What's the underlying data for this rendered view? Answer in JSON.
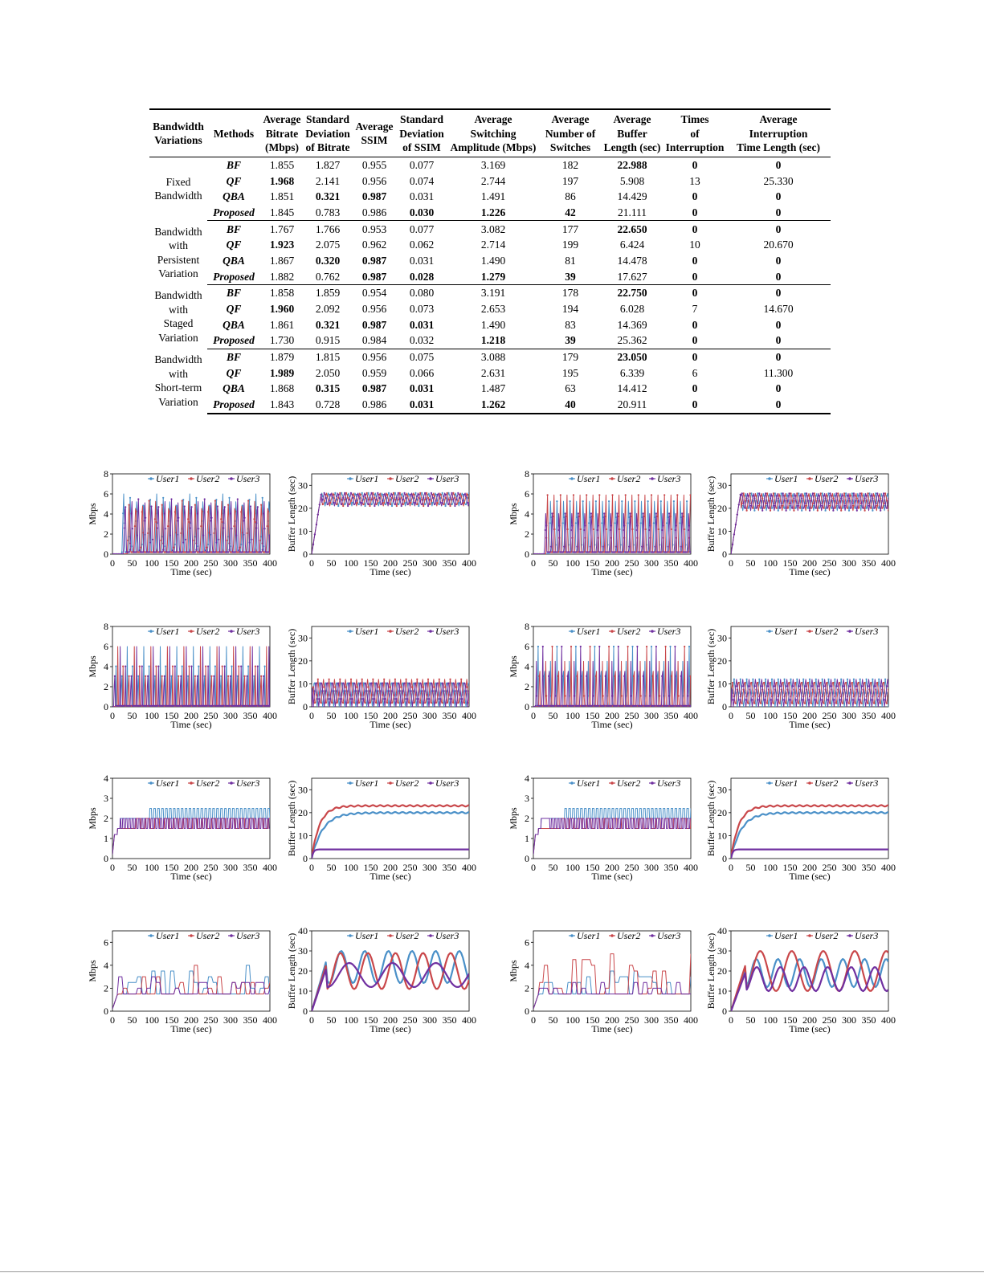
{
  "table": {
    "headers": [
      "Bandwidth\nVariations",
      "Methods",
      "Average\nBitrate\n(Mbps)",
      "Standard\nDeviation\nof Bitrate",
      "Average\nSSIM",
      "Standard\nDeviation\nof SSIM",
      "Average\nSwitching\nAmplitude (Mbps)",
      "Average\nNumber of\nSwitches",
      "Average\nBuffer\nLength (sec)",
      "Times\nof\nInterruption",
      "Average\nInterruption\nTime Length (sec)"
    ],
    "groups": [
      {
        "label": "Fixed\nBandwidth",
        "rows": [
          {
            "method": "BF",
            "cells": [
              "1.855",
              "1.827",
              "0.955",
              "0.077",
              "3.169",
              "182",
              "22.988",
              "0",
              "0"
            ],
            "bold": [
              6,
              7,
              8
            ]
          },
          {
            "method": "QF",
            "cells": [
              "1.968",
              "2.141",
              "0.956",
              "0.074",
              "2.744",
              "197",
              "5.908",
              "13",
              "25.330"
            ],
            "bold": [
              0
            ]
          },
          {
            "method": "QBA",
            "cells": [
              "1.851",
              "0.321",
              "0.987",
              "0.031",
              "1.491",
              "86",
              "14.429",
              "0",
              "0"
            ],
            "bold": [
              1,
              2,
              7,
              8
            ]
          },
          {
            "method": "Proposed",
            "cells": [
              "1.845",
              "0.783",
              "0.986",
              "0.030",
              "1.226",
              "42",
              "21.111",
              "0",
              "0"
            ],
            "bold": [
              3,
              4,
              5,
              7,
              8
            ]
          }
        ]
      },
      {
        "label": "Bandwidth\nwith\nPersistent\nVariation",
        "rows": [
          {
            "method": "BF",
            "cells": [
              "1.767",
              "1.766",
              "0.953",
              "0.077",
              "3.082",
              "177",
              "22.650",
              "0",
              "0"
            ],
            "bold": [
              6,
              7,
              8
            ]
          },
          {
            "method": "QF",
            "cells": [
              "1.923",
              "2.075",
              "0.962",
              "0.062",
              "2.714",
              "199",
              "6.424",
              "10",
              "20.670"
            ],
            "bold": [
              0
            ]
          },
          {
            "method": "QBA",
            "cells": [
              "1.867",
              "0.320",
              "0.987",
              "0.031",
              "1.490",
              "81",
              "14.478",
              "0",
              "0"
            ],
            "bold": [
              1,
              2,
              7,
              8
            ]
          },
          {
            "method": "Proposed",
            "cells": [
              "1.882",
              "0.762",
              "0.987",
              "0.028",
              "1.279",
              "39",
              "17.627",
              "0",
              "0"
            ],
            "bold": [
              2,
              3,
              4,
              5,
              7,
              8
            ]
          }
        ]
      },
      {
        "label": "Bandwidth\nwith\nStaged\nVariation",
        "rows": [
          {
            "method": "BF",
            "cells": [
              "1.858",
              "1.859",
              "0.954",
              "0.080",
              "3.191",
              "178",
              "22.750",
              "0",
              "0"
            ],
            "bold": [
              6,
              7,
              8
            ]
          },
          {
            "method": "QF",
            "cells": [
              "1.960",
              "2.092",
              "0.956",
              "0.073",
              "2.653",
              "194",
              "6.028",
              "7",
              "14.670"
            ],
            "bold": [
              0
            ]
          },
          {
            "method": "QBA",
            "cells": [
              "1.861",
              "0.321",
              "0.987",
              "0.031",
              "1.490",
              "83",
              "14.369",
              "0",
              "0"
            ],
            "bold": [
              1,
              2,
              3,
              7,
              8
            ]
          },
          {
            "method": "Proposed",
            "cells": [
              "1.730",
              "0.915",
              "0.984",
              "0.032",
              "1.218",
              "39",
              "25.362",
              "0",
              "0"
            ],
            "bold": [
              4,
              5,
              7,
              8
            ]
          }
        ]
      },
      {
        "label": "Bandwidth\nwith\nShort-term\nVariation",
        "rows": [
          {
            "method": "BF",
            "cells": [
              "1.879",
              "1.815",
              "0.956",
              "0.075",
              "3.088",
              "179",
              "23.050",
              "0",
              "0"
            ],
            "bold": [
              6,
              7,
              8
            ]
          },
          {
            "method": "QF",
            "cells": [
              "1.989",
              "2.050",
              "0.959",
              "0.066",
              "2.631",
              "195",
              "6.339",
              "6",
              "11.300"
            ],
            "bold": [
              0
            ]
          },
          {
            "method": "QBA",
            "cells": [
              "1.868",
              "0.315",
              "0.987",
              "0.031",
              "1.487",
              "63",
              "14.412",
              "0",
              "0"
            ],
            "bold": [
              1,
              2,
              3,
              7,
              8
            ]
          },
          {
            "method": "Proposed",
            "cells": [
              "1.843",
              "0.728",
              "0.986",
              "0.031",
              "1.262",
              "40",
              "20.911",
              "0",
              "0"
            ],
            "bold": [
              3,
              4,
              5,
              7,
              8
            ]
          }
        ]
      }
    ]
  },
  "colors": {
    "User1": "#4a90c8",
    "User2": "#c9474a",
    "User3": "#7030a0"
  },
  "chart_data": [
    {
      "type": "line",
      "xlabel": "Time (sec)",
      "ylabel": "Mbps",
      "xlim": [
        0,
        400
      ],
      "ylim": [
        0,
        8
      ],
      "yticks": [
        0,
        2,
        4,
        6,
        8
      ],
      "xticks": [
        0,
        50,
        100,
        150,
        200,
        250,
        300,
        350,
        400
      ],
      "legend": [
        "User1",
        "User2",
        "User3"
      ],
      "legend_position": "top",
      "pattern": "spike",
      "params": {
        "period": 16.8,
        "rise": 4.5,
        "fall": 3.0,
        "start": [
          24,
          38,
          28
        ],
        "peak": [
          6,
          5.5,
          5.6
        ],
        "low": 0.2
      }
    },
    {
      "type": "line",
      "xlabel": "Time (sec)",
      "ylabel": "Buffer Length (sec)",
      "xlim": [
        0,
        400
      ],
      "ylim": [
        0,
        35
      ],
      "yticks": [
        0,
        10,
        20,
        30
      ],
      "xticks": [
        0,
        50,
        100,
        150,
        200,
        250,
        300,
        350,
        400
      ],
      "legend": [
        "User1",
        "User2",
        "User3"
      ],
      "legend_position": "top",
      "pattern": "sawtooth",
      "params": {
        "base": 24,
        "amp": 3,
        "period": 17,
        "ramp": 25
      }
    },
    {
      "type": "line",
      "xlabel": "Time (sec)",
      "ylabel": "Mbps",
      "xlim": [
        0,
        400
      ],
      "ylim": [
        0,
        8
      ],
      "yticks": [
        0,
        2,
        4,
        6,
        8
      ],
      "xticks": [
        0,
        50,
        100,
        150,
        200,
        250,
        300,
        350,
        400
      ],
      "legend": [
        "User1",
        "User2",
        "User3"
      ],
      "legend_position": "top",
      "pattern": "spike",
      "params": {
        "period": 16.5,
        "rise": 4.0,
        "fall": 2.5,
        "start": [
          40,
          32,
          28
        ],
        "peak": [
          6,
          5.9,
          4.6
        ],
        "low": 0.2
      }
    },
    {
      "type": "line",
      "xlabel": "Time (sec)",
      "ylabel": "Buffer Length (sec)",
      "xlim": [
        0,
        400
      ],
      "ylim": [
        0,
        35
      ],
      "yticks": [
        0,
        10,
        20,
        30
      ],
      "xticks": [
        0,
        50,
        100,
        150,
        200,
        250,
        300,
        350,
        400
      ],
      "legend": [
        "User1",
        "User2",
        "User3"
      ],
      "legend_position": "top",
      "pattern": "sawtooth",
      "params": {
        "base": 23,
        "amp": 4,
        "period": 15,
        "ramp": 25
      }
    },
    {
      "type": "line",
      "xlabel": "Time (sec)",
      "ylabel": "Mbps",
      "xlim": [
        0,
        400
      ],
      "ylim": [
        0,
        8
      ],
      "yticks": [
        0,
        2,
        4,
        6,
        8
      ],
      "xticks": [
        0,
        50,
        100,
        150,
        200,
        250,
        300,
        350,
        400
      ],
      "legend": [
        "User1",
        "User2",
        "User3"
      ],
      "legend_position": "top",
      "pattern": "spike",
      "params": {
        "period": 14,
        "rise": 1.5,
        "fall": 1.0,
        "start": [
          8,
          12,
          4
        ],
        "peak": [
          6,
          6,
          6
        ],
        "low": 0.1
      }
    },
    {
      "type": "line",
      "xlabel": "Time (sec)",
      "ylabel": "Buffer Length (sec)",
      "xlim": [
        0,
        400
      ],
      "ylim": [
        0,
        35
      ],
      "yticks": [
        0,
        10,
        20,
        30
      ],
      "xticks": [
        0,
        50,
        100,
        150,
        200,
        250,
        300,
        350,
        400
      ],
      "legend": [
        "User1",
        "User2",
        "User3"
      ],
      "legend_position": "top",
      "pattern": "sawtooth",
      "params": {
        "base": 6,
        "amp": 6,
        "period": 14,
        "ramp": 3
      }
    },
    {
      "type": "line",
      "xlabel": "Time (sec)",
      "ylabel": "Mbps",
      "xlim": [
        0,
        400
      ],
      "ylim": [
        0,
        8
      ],
      "yticks": [
        0,
        2,
        4,
        6,
        8
      ],
      "xticks": [
        0,
        50,
        100,
        150,
        200,
        250,
        300,
        350,
        400
      ],
      "legend": [
        "User1",
        "User2",
        "User3"
      ],
      "legend_position": "top",
      "pattern": "spike",
      "params": {
        "period": 16,
        "rise": 2.0,
        "fall": 1.2,
        "start": [
          10,
          14,
          6
        ],
        "peak": [
          6,
          6,
          6
        ],
        "low": 0.1
      }
    },
    {
      "type": "line",
      "xlabel": "Time (sec)",
      "ylabel": "Buffer Length (sec)",
      "xlim": [
        0,
        400
      ],
      "ylim": [
        0,
        35
      ],
      "yticks": [
        0,
        10,
        20,
        30
      ],
      "xticks": [
        0,
        50,
        100,
        150,
        200,
        250,
        300,
        350,
        400
      ],
      "legend": [
        "User1",
        "User2",
        "User3"
      ],
      "legend_position": "top",
      "pattern": "sawtooth",
      "params": {
        "base": 6,
        "amp": 6,
        "period": 16,
        "ramp": 3
      }
    },
    {
      "type": "line",
      "xlabel": "Time (sec)",
      "ylabel": "Mbps",
      "xlim": [
        0,
        400
      ],
      "ylim": [
        0,
        4
      ],
      "yticks": [
        0,
        1,
        2,
        3,
        4
      ],
      "xticks": [
        0,
        50,
        100,
        150,
        200,
        250,
        300,
        350,
        400
      ],
      "legend": [
        "User1",
        "User2",
        "User3"
      ],
      "legend_position": "top",
      "pattern": "toggle",
      "params": {
        "hi": [
          2.5,
          2,
          2
        ],
        "lo": [
          2,
          1.5,
          1.5
        ],
        "start": [
          95,
          60,
          18
        ],
        "period": [
          5,
          12,
          4
        ]
      }
    },
    {
      "type": "line",
      "xlabel": "Time (sec)",
      "ylabel": "Buffer Length (sec)",
      "xlim": [
        0,
        400
      ],
      "ylim": [
        0,
        35
      ],
      "yticks": [
        0,
        10,
        20,
        30
      ],
      "xticks": [
        0,
        50,
        100,
        150,
        200,
        250,
        300,
        350,
        400
      ],
      "legend": [
        "User1",
        "User2",
        "User3"
      ],
      "legend_position": "top",
      "pattern": "plateau",
      "params": {
        "target": [
          20,
          23,
          4
        ],
        "tau": [
          28,
          20,
          4
        ]
      }
    },
    {
      "type": "line",
      "xlabel": "Time (sec)",
      "ylabel": "Mbps",
      "xlim": [
        0,
        400
      ],
      "ylim": [
        0,
        4
      ],
      "yticks": [
        0,
        1,
        2,
        3,
        4
      ],
      "xticks": [
        0,
        50,
        100,
        150,
        200,
        250,
        300,
        350,
        400
      ],
      "legend": [
        "User1",
        "User2",
        "User3"
      ],
      "legend_position": "top",
      "pattern": "toggle",
      "params": {
        "hi": [
          2.5,
          2,
          2
        ],
        "lo": [
          2,
          1.5,
          1.5
        ],
        "start": [
          80,
          70,
          38
        ],
        "period": [
          5,
          11,
          4
        ]
      }
    },
    {
      "type": "line",
      "xlabel": "Time (sec)",
      "ylabel": "Buffer Length (sec)",
      "xlim": [
        0,
        400
      ],
      "ylim": [
        0,
        35
      ],
      "yticks": [
        0,
        10,
        20,
        30
      ],
      "xticks": [
        0,
        50,
        100,
        150,
        200,
        250,
        300,
        350,
        400
      ],
      "legend": [
        "User1",
        "User2",
        "User3"
      ],
      "legend_position": "top",
      "pattern": "plateau",
      "params": {
        "target": [
          20,
          23,
          4
        ],
        "tau": [
          26,
          20,
          4
        ]
      }
    },
    {
      "type": "line",
      "xlabel": "Time (sec)",
      "ylabel": "Mbps",
      "xlim": [
        0,
        400
      ],
      "ylim": [
        0,
        7
      ],
      "yticks": [
        0,
        2,
        4,
        6
      ],
      "xticks": [
        0,
        50,
        100,
        150,
        200,
        250,
        300,
        350,
        400
      ],
      "legend": [
        "User1",
        "User2",
        "User3"
      ],
      "legend_position": "top",
      "pattern": "steps",
      "params": {
        "seeds": [
          3,
          7,
          11
        ],
        "base": 1.5,
        "maxv": [
          4.5,
          4,
          3
        ]
      }
    },
    {
      "type": "line",
      "xlabel": "Time (sec)",
      "ylabel": "Buffer Length (sec)",
      "xlim": [
        0,
        400
      ],
      "ylim": [
        0,
        40
      ],
      "yticks": [
        0,
        10,
        20,
        30,
        40
      ],
      "xticks": [
        0,
        50,
        100,
        150,
        200,
        250,
        300,
        350,
        400
      ],
      "legend": [
        "User1",
        "User2",
        "User3"
      ],
      "legend_position": "top",
      "pattern": "waves",
      "params": {
        "base": [
          22,
          20,
          18
        ],
        "amp": [
          8,
          9,
          6
        ],
        "period": [
          60,
          70,
          110
        ],
        "phase": [
          0,
          1.3,
          2.4
        ]
      }
    },
    {
      "type": "line",
      "xlabel": "Time (sec)",
      "ylabel": "Mbps",
      "xlim": [
        0,
        400
      ],
      "ylim": [
        0,
        7
      ],
      "yticks": [
        0,
        2,
        4,
        6
      ],
      "xticks": [
        0,
        50,
        100,
        150,
        200,
        250,
        300,
        350,
        400
      ],
      "legend": [
        "User1",
        "User2",
        "User3"
      ],
      "legend_position": "top",
      "pattern": "steps",
      "params": {
        "seeds": [
          5,
          9,
          13
        ],
        "base": 1.5,
        "maxv": [
          3.5,
          5,
          2.5
        ]
      }
    },
    {
      "type": "line",
      "xlabel": "Time (sec)",
      "ylabel": "Buffer Length (sec)",
      "xlim": [
        0,
        400
      ],
      "ylim": [
        0,
        40
      ],
      "yticks": [
        0,
        10,
        20,
        30,
        40
      ],
      "xticks": [
        0,
        50,
        100,
        150,
        200,
        250,
        300,
        350,
        400
      ],
      "legend": [
        "User1",
        "User2",
        "User3"
      ],
      "legend_position": "top",
      "pattern": "waves",
      "params": {
        "base": [
          19,
          20,
          16
        ],
        "amp": [
          7,
          10,
          6
        ],
        "period": [
          55,
          80,
          60
        ],
        "phase": [
          0.5,
          2.0,
          1.0
        ]
      }
    }
  ]
}
